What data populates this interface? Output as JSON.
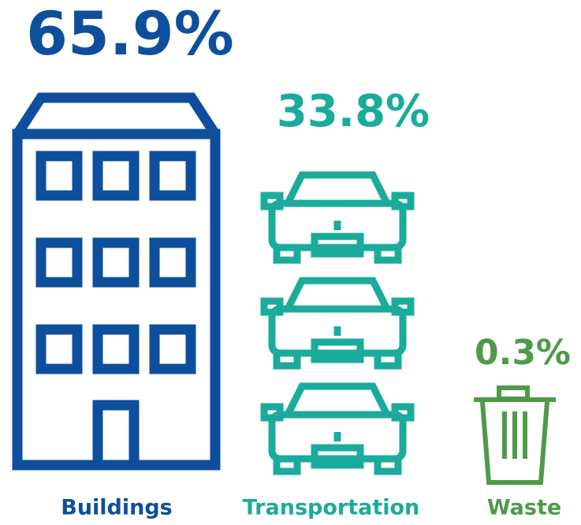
{
  "chart_data": {
    "type": "pictograph",
    "categories": [
      "Buildings",
      "Transportation",
      "Waste"
    ],
    "values": [
      65.9,
      33.8,
      0.3
    ],
    "value_labels": [
      "65.9%",
      "33.8%",
      "0.3%"
    ],
    "colors": [
      "#0d4f9c",
      "#1aab9b",
      "#4e9a4a"
    ]
  }
}
